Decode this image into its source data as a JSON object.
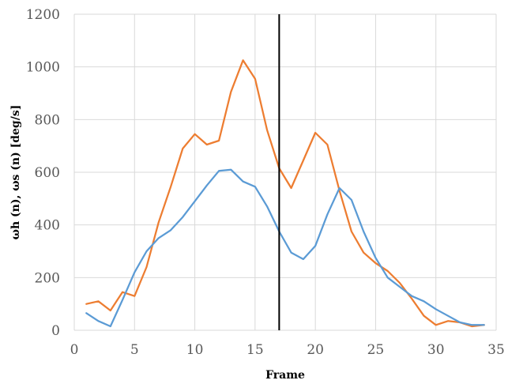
{
  "chart_data": {
    "type": "line",
    "xlabel": "Frame",
    "ylabel": "ωh (n), ωs (n) [deg/s]",
    "xlim": [
      0,
      35
    ],
    "ylim": [
      0,
      1200
    ],
    "xticks": [
      0,
      5,
      10,
      15,
      20,
      25,
      30,
      35
    ],
    "yticks": [
      0,
      200,
      400,
      600,
      800,
      1000,
      1200
    ],
    "grid": true,
    "legend": "none",
    "marker_line_x": 17,
    "x": [
      1,
      2,
      3,
      4,
      5,
      6,
      7,
      8,
      9,
      10,
      11,
      12,
      13,
      14,
      15,
      16,
      17,
      18,
      19,
      20,
      21,
      22,
      23,
      24,
      25,
      26,
      27,
      28,
      29,
      30,
      31,
      32,
      33,
      34
    ],
    "series": [
      {
        "color": "#ed7d31",
        "values": [
          100,
          110,
          75,
          145,
          130,
          240,
          410,
          545,
          690,
          745,
          705,
          720,
          905,
          1025,
          955,
          760,
          615,
          540,
          645,
          750,
          705,
          530,
          375,
          295,
          255,
          225,
          180,
          120,
          55,
          20,
          35,
          30,
          15,
          20
        ]
      },
      {
        "color": "#5b9bd5",
        "values": [
          65,
          35,
          15,
          115,
          220,
          300,
          350,
          380,
          430,
          490,
          550,
          605,
          610,
          565,
          545,
          470,
          375,
          295,
          270,
          320,
          440,
          540,
          495,
          375,
          275,
          200,
          165,
          130,
          110,
          80,
          55,
          30,
          20,
          20
        ]
      }
    ]
  }
}
